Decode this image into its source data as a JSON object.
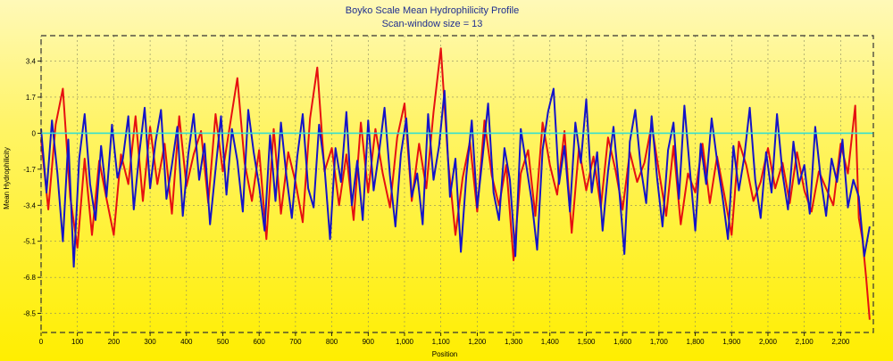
{
  "chart_data": {
    "type": "line",
    "title": "Boyko Scale Mean Hydrophilicity Profile",
    "subtitle": "Scan-window size = 13",
    "xlabel": "Position",
    "ylabel": "Mean  Hydrophilicity",
    "xlim": [
      0,
      2290
    ],
    "ylim": [
      -9.4,
      4.6
    ],
    "x_ticks": [
      0,
      100,
      200,
      300,
      400,
      500,
      600,
      700,
      800,
      900,
      1000,
      1100,
      1200,
      1300,
      1400,
      1500,
      1600,
      1700,
      1800,
      1900,
      2000,
      2100,
      2200
    ],
    "x_tick_labels": [
      "0",
      "100",
      "200",
      "300",
      "400",
      "500",
      "600",
      "700",
      "800",
      "900",
      "1,000",
      "1,100",
      "1,200",
      "1,300",
      "1,400",
      "1,500",
      "1,600",
      "1,700",
      "1,800",
      "1,900",
      "2,000",
      "2,100",
      "2,200"
    ],
    "y_ticks": [
      3.4,
      1.7,
      0,
      -1.7,
      -3.4,
      -5.1,
      -6.8,
      -8.5
    ],
    "y_tick_labels": [
      "3.4",
      "1.7",
      "0",
      "-1.7",
      "-3.4",
      "-5.1",
      "-6.8",
      "-8.5"
    ],
    "grid": true,
    "reference_line": {
      "y": 0,
      "color": "#33e0d0"
    },
    "series": [
      {
        "color": "#e61010",
        "x": [
          0,
          20,
          40,
          60,
          80,
          100,
          120,
          140,
          160,
          180,
          200,
          220,
          240,
          260,
          280,
          300,
          320,
          340,
          360,
          380,
          400,
          420,
          440,
          460,
          480,
          500,
          520,
          540,
          560,
          580,
          600,
          620,
          640,
          660,
          680,
          700,
          720,
          740,
          760,
          780,
          800,
          820,
          840,
          860,
          880,
          900,
          920,
          940,
          960,
          980,
          1000,
          1020,
          1040,
          1060,
          1080,
          1100,
          1120,
          1140,
          1160,
          1180,
          1200,
          1220,
          1240,
          1260,
          1280,
          1300,
          1320,
          1340,
          1360,
          1380,
          1400,
          1420,
          1440,
          1460,
          1480,
          1500,
          1520,
          1540,
          1560,
          1580,
          1600,
          1620,
          1640,
          1660,
          1680,
          1700,
          1720,
          1740,
          1760,
          1780,
          1800,
          1820,
          1840,
          1860,
          1880,
          1900,
          1920,
          1940,
          1960,
          1980,
          2000,
          2020,
          2040,
          2060,
          2080,
          2100,
          2120,
          2140,
          2160,
          2180,
          2200,
          2220,
          2240,
          2250,
          2260,
          2270,
          2280
        ],
        "values": [
          -0.3,
          -3.6,
          0.4,
          2.1,
          -3.0,
          -5.4,
          -1.2,
          -4.8,
          -1.3,
          -3.1,
          -4.8,
          -1.0,
          -2.4,
          0.8,
          -3.2,
          0.3,
          -2.4,
          -0.5,
          -3.8,
          0.8,
          -2.5,
          -1.0,
          0.1,
          -3.3,
          0.9,
          -1.8,
          0.4,
          2.6,
          -1.4,
          -3.2,
          -0.8,
          -5.0,
          0.2,
          -3.8,
          -0.9,
          -2.3,
          -4.2,
          0.7,
          3.1,
          -1.8,
          -0.7,
          -3.4,
          -1.0,
          -4.1,
          0.5,
          -2.8,
          0.2,
          -1.9,
          -3.5,
          -0.2,
          1.4,
          -3.2,
          -0.5,
          -2.6,
          1.0,
          4.0,
          -1.3,
          -4.8,
          -2.1,
          -0.4,
          -3.7,
          0.6,
          -2.0,
          -3.4,
          -1.5,
          -6.0,
          -1.9,
          -0.8,
          -3.9,
          0.5,
          -1.5,
          -2.9,
          0.1,
          -4.7,
          -0.7,
          -2.7,
          -1.1,
          -3.5,
          -0.2,
          -1.7,
          -3.6,
          -0.9,
          -2.3,
          -1.4,
          0.4,
          -1.8,
          -3.9,
          -0.6,
          -4.3,
          -1.9,
          -2.8,
          -0.5,
          -3.3,
          -1.1,
          -2.9,
          -4.8,
          -0.4,
          -1.5,
          -3.2,
          -2.3,
          -0.7,
          -2.6,
          -1.4,
          -3.3,
          -0.9,
          -2.7,
          -3.7,
          -1.8,
          -2.6,
          -3.4,
          -0.5,
          -1.9,
          1.3,
          -4.0,
          -5.0,
          -6.8,
          -8.8
        ]
      },
      {
        "color": "#1414c8",
        "x": [
          0,
          15,
          30,
          45,
          60,
          75,
          90,
          105,
          120,
          135,
          150,
          165,
          180,
          195,
          210,
          225,
          240,
          255,
          270,
          285,
          300,
          315,
          330,
          345,
          360,
          375,
          390,
          405,
          420,
          435,
          450,
          465,
          480,
          495,
          510,
          525,
          540,
          555,
          570,
          585,
          600,
          615,
          630,
          645,
          660,
          675,
          690,
          705,
          720,
          735,
          750,
          765,
          780,
          795,
          810,
          825,
          840,
          855,
          870,
          885,
          900,
          915,
          930,
          945,
          960,
          975,
          990,
          1005,
          1020,
          1035,
          1050,
          1065,
          1080,
          1095,
          1110,
          1125,
          1140,
          1155,
          1170,
          1185,
          1200,
          1215,
          1230,
          1245,
          1260,
          1275,
          1290,
          1305,
          1320,
          1335,
          1350,
          1365,
          1380,
          1395,
          1410,
          1425,
          1440,
          1455,
          1470,
          1485,
          1500,
          1515,
          1530,
          1545,
          1560,
          1575,
          1590,
          1605,
          1620,
          1635,
          1650,
          1665,
          1680,
          1695,
          1710,
          1725,
          1740,
          1755,
          1770,
          1785,
          1800,
          1815,
          1830,
          1845,
          1860,
          1875,
          1890,
          1905,
          1920,
          1935,
          1950,
          1965,
          1980,
          1995,
          2010,
          2025,
          2040,
          2055,
          2070,
          2085,
          2100,
          2115,
          2130,
          2145,
          2160,
          2175,
          2190,
          2205,
          2220,
          2235,
          2250,
          2265,
          2280
        ],
        "values": [
          0.2,
          -2.8,
          0.6,
          -1.9,
          -5.1,
          -0.3,
          -6.3,
          -1.2,
          0.9,
          -2.4,
          -4.1,
          -0.6,
          -3.0,
          0.4,
          -2.1,
          -1.2,
          0.8,
          -3.6,
          -1.0,
          1.2,
          -2.6,
          -0.4,
          1.1,
          -3.1,
          -1.5,
          0.3,
          -3.9,
          -1.0,
          0.9,
          -2.2,
          -0.5,
          -4.3,
          -1.7,
          0.8,
          -2.9,
          0.2,
          -1.3,
          -3.7,
          1.1,
          -0.9,
          -2.5,
          -4.6,
          -0.1,
          -3.2,
          0.5,
          -2.0,
          -4.0,
          -1.1,
          0.9,
          -2.6,
          -3.5,
          0.4,
          -1.6,
          -5.0,
          -0.7,
          -2.3,
          1.0,
          -3.4,
          -1.3,
          -4.1,
          0.6,
          -2.7,
          -0.9,
          1.2,
          -2.0,
          -4.4,
          -1.0,
          0.7,
          -3.0,
          -1.9,
          -4.3,
          0.9,
          -2.2,
          -0.6,
          2.0,
          -3.0,
          -1.2,
          -5.6,
          -2.0,
          0.6,
          -3.5,
          -1.1,
          1.4,
          -2.8,
          -4.1,
          -0.7,
          -2.2,
          -5.8,
          0.2,
          -1.5,
          -3.2,
          -5.5,
          -0.8,
          1.0,
          2.1,
          -2.4,
          -0.6,
          -3.7,
          0.5,
          -1.4,
          1.6,
          -2.8,
          -0.9,
          -4.6,
          -1.8,
          0.3,
          -2.5,
          -5.7,
          -0.4,
          1.1,
          -1.6,
          -3.3,
          0.8,
          -2.1,
          -4.4,
          -0.8,
          0.5,
          -3.1,
          1.3,
          -1.7,
          -4.6,
          -0.5,
          -2.4,
          0.7,
          -1.3,
          -3.0,
          -5.0,
          -0.6,
          -2.7,
          -1.1,
          1.2,
          -2.2,
          -4.0,
          -0.9,
          -2.8,
          0.9,
          -1.9,
          -3.6,
          -0.4,
          -2.4,
          -1.5,
          -3.8,
          0.3,
          -2.1,
          -3.9,
          -1.2,
          -2.3,
          -0.3,
          -3.5,
          -2.2,
          -3.0,
          -5.8,
          -4.4
        ]
      }
    ]
  }
}
